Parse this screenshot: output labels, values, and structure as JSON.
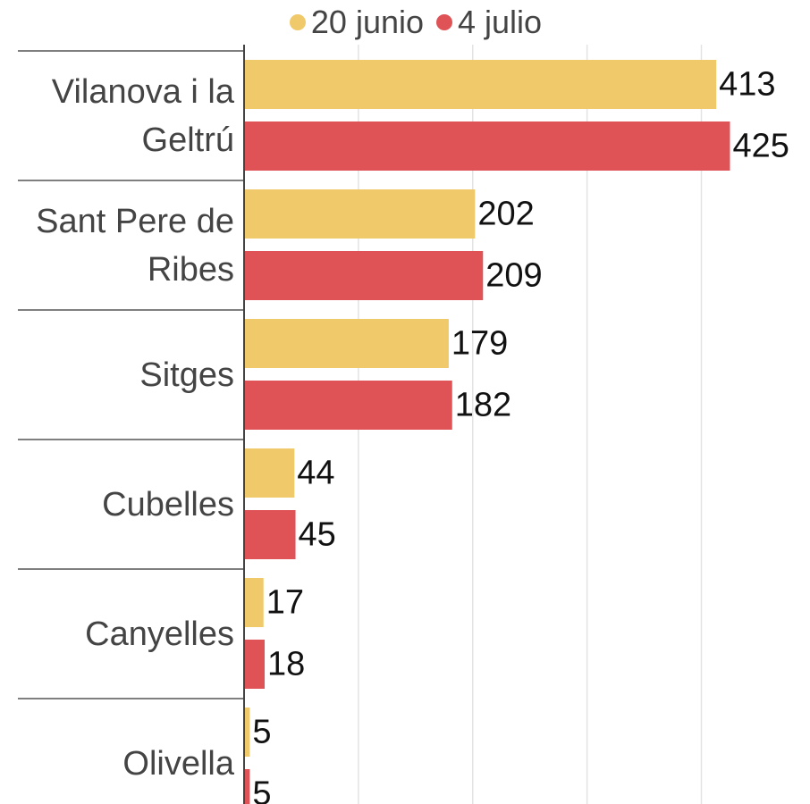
{
  "chart_data": {
    "type": "bar",
    "orientation": "horizontal",
    "categories": [
      "Vilanova i la Geltrú",
      "Sant Pere de Ribes",
      "Sitges",
      "Cubelles",
      "Canyelles",
      "Olivella"
    ],
    "series": [
      {
        "name": "20 junio",
        "color": "#f0c96a",
        "values": [
          413,
          202,
          179,
          44,
          17,
          5
        ]
      },
      {
        "name": "4 julio",
        "color": "#df5357",
        "values": [
          425,
          209,
          182,
          45,
          18,
          5
        ]
      }
    ],
    "xlim": [
      0,
      495
    ],
    "xticks": [
      0,
      100,
      200,
      300,
      400
    ],
    "grid": true
  }
}
